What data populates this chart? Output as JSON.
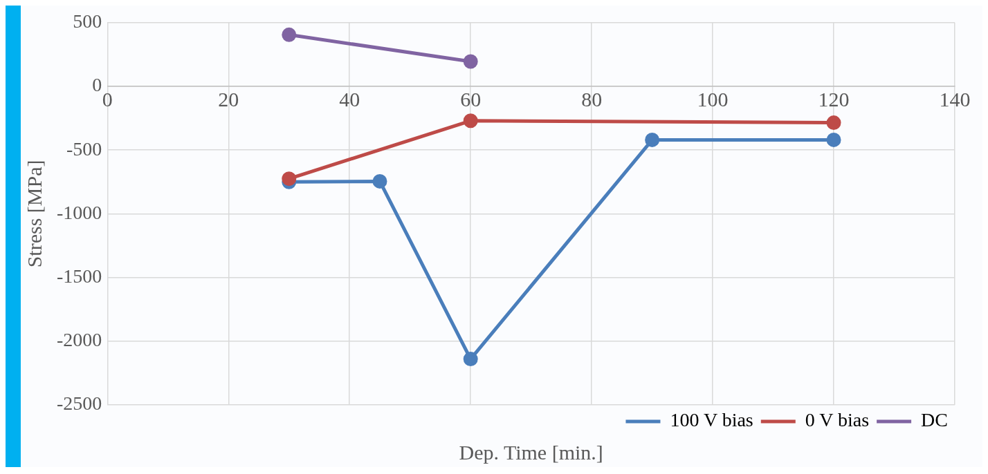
{
  "chart_data": {
    "type": "line",
    "xlabel": "Dep. Time [min.]",
    "ylabel": "Stress [MPa]",
    "xlim": [
      0,
      140
    ],
    "xticks": [
      0,
      20,
      40,
      60,
      80,
      100,
      120,
      140
    ],
    "ylim": [
      -2500,
      500
    ],
    "yticks": [
      -2500,
      -2000,
      -1500,
      -1000,
      -500,
      0,
      500
    ],
    "grid": true,
    "legend": "bottom right",
    "marker": "circle",
    "line_style": "solid",
    "series": [
      {
        "name": "100 V bias",
        "color": "#4a7ebb",
        "x": [
          30,
          45,
          60,
          90,
          120
        ],
        "values": [
          -750,
          -745,
          -2140,
          -420,
          -420
        ]
      },
      {
        "name": "0 V bias",
        "color": "#be4b48",
        "x": [
          30,
          60,
          120
        ],
        "values": [
          -725,
          -270,
          -285
        ]
      },
      {
        "name": "DC",
        "color": "#8064a2",
        "x": [
          30,
          60
        ],
        "values": [
          405,
          195
        ]
      }
    ]
  }
}
